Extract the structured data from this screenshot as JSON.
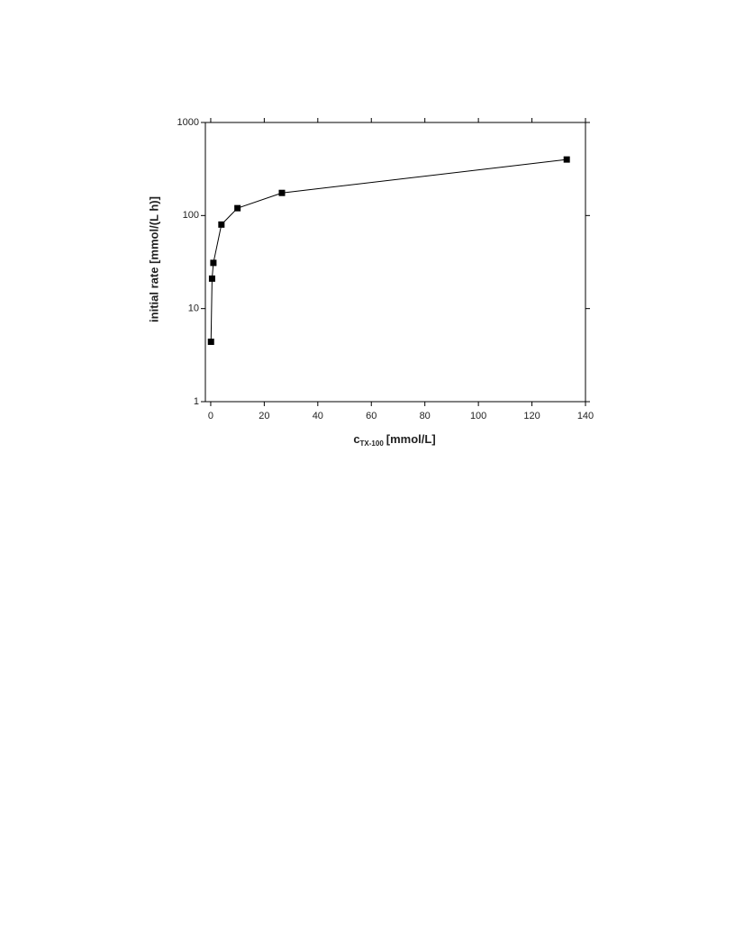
{
  "chart_data": {
    "type": "line",
    "xlabel": {
      "symbol": "c",
      "subscript": "TX-100",
      "unit": "[mmol/L]"
    },
    "ylabel": "initial rate [mmol/(L h)]",
    "x": [
      0.1,
      0.5,
      1,
      4,
      10,
      26.6,
      133
    ],
    "series": [
      {
        "name": "initial rate",
        "color": "#000000",
        "values": [
          4.4,
          21,
          31,
          80,
          120,
          175,
          400
        ]
      }
    ],
    "xlim": [
      -2,
      140
    ],
    "xticks": [
      0,
      20,
      40,
      60,
      80,
      100,
      120,
      140
    ],
    "ylim": [
      1,
      1000
    ],
    "yticks": [
      1,
      10,
      100,
      1000
    ],
    "ylog": true,
    "grid": false,
    "marker": "square"
  }
}
